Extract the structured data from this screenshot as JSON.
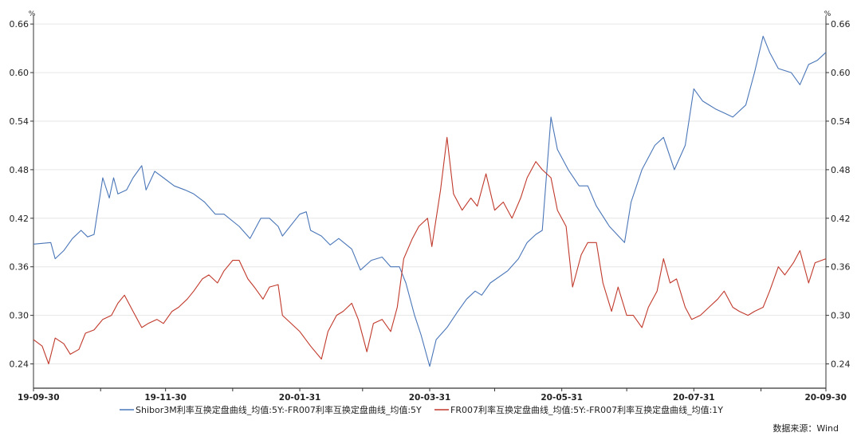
{
  "chart_data": {
    "type": "line",
    "unit_left": "%",
    "unit_right": "%",
    "ylim": [
      0.21,
      0.67
    ],
    "yticks": [
      0.24,
      0.3,
      0.36,
      0.42,
      0.48,
      0.54,
      0.6,
      0.66
    ],
    "ytick_labels": [
      "0.24",
      "0.30",
      "0.36",
      "0.42",
      "0.48",
      "0.54",
      "0.60",
      "0.66"
    ],
    "xlim": [
      "2019-09-30",
      "2020-09-30"
    ],
    "xtick_labels": [
      "19-09-30",
      "19-11-30",
      "20-01-31",
      "20-03-31",
      "20-05-31",
      "20-07-31",
      "20-09-30"
    ],
    "xtick_dates": [
      "2019-09-30",
      "2019-11-30",
      "2020-01-31",
      "2020-03-31",
      "2020-05-31",
      "2020-07-31",
      "2020-09-30"
    ],
    "grid": "horizontal",
    "legend_position": "bottom",
    "series": [
      {
        "name": "Shibor3M利率互换定盘曲线_均值:5Y:-FR007利率互换定盘曲线_均值:5Y",
        "color": "#4a76b8",
        "points": [
          [
            "2019-09-30",
            0.388
          ],
          [
            "2019-10-08",
            0.39
          ],
          [
            "2019-10-10",
            0.37
          ],
          [
            "2019-10-14",
            0.38
          ],
          [
            "2019-10-18",
            0.395
          ],
          [
            "2019-10-22",
            0.405
          ],
          [
            "2019-10-25",
            0.397
          ],
          [
            "2019-10-28",
            0.4
          ],
          [
            "2019-11-01",
            0.47
          ],
          [
            "2019-11-04",
            0.445
          ],
          [
            "2019-11-06",
            0.47
          ],
          [
            "2019-11-08",
            0.45
          ],
          [
            "2019-11-12",
            0.455
          ],
          [
            "2019-11-15",
            0.47
          ],
          [
            "2019-11-19",
            0.485
          ],
          [
            "2019-11-21",
            0.455
          ],
          [
            "2019-11-25",
            0.478
          ],
          [
            "2019-11-29",
            0.47
          ],
          [
            "2019-12-04",
            0.46
          ],
          [
            "2019-12-09",
            0.455
          ],
          [
            "2019-12-13",
            0.45
          ],
          [
            "2019-12-18",
            0.44
          ],
          [
            "2019-12-23",
            0.425
          ],
          [
            "2019-12-27",
            0.425
          ],
          [
            "2020-01-03",
            0.41
          ],
          [
            "2020-01-08",
            0.395
          ],
          [
            "2020-01-13",
            0.42
          ],
          [
            "2020-01-17",
            0.42
          ],
          [
            "2020-01-21",
            0.41
          ],
          [
            "2020-01-23",
            0.398
          ],
          [
            "2020-01-31",
            0.425
          ],
          [
            "2020-02-03",
            0.428
          ],
          [
            "2020-02-05",
            0.405
          ],
          [
            "2020-02-10",
            0.398
          ],
          [
            "2020-02-14",
            0.387
          ],
          [
            "2020-02-18",
            0.395
          ],
          [
            "2020-02-24",
            0.382
          ],
          [
            "2020-02-28",
            0.356
          ],
          [
            "2020-03-04",
            0.368
          ],
          [
            "2020-03-09",
            0.372
          ],
          [
            "2020-03-13",
            0.36
          ],
          [
            "2020-03-17",
            0.36
          ],
          [
            "2020-03-20",
            0.34
          ],
          [
            "2020-03-24",
            0.3
          ],
          [
            "2020-03-27",
            0.276
          ],
          [
            "2020-03-31",
            0.237
          ],
          [
            "2020-04-03",
            0.27
          ],
          [
            "2020-04-08",
            0.285
          ],
          [
            "2020-04-13",
            0.305
          ],
          [
            "2020-04-17",
            0.32
          ],
          [
            "2020-04-21",
            0.33
          ],
          [
            "2020-04-24",
            0.325
          ],
          [
            "2020-04-28",
            0.34
          ],
          [
            "2020-05-06",
            0.355
          ],
          [
            "2020-05-11",
            0.37
          ],
          [
            "2020-05-15",
            0.39
          ],
          [
            "2020-05-19",
            0.4
          ],
          [
            "2020-05-22",
            0.405
          ],
          [
            "2020-05-26",
            0.545
          ],
          [
            "2020-05-29",
            0.505
          ],
          [
            "2020-06-03",
            0.48
          ],
          [
            "2020-06-08",
            0.46
          ],
          [
            "2020-06-12",
            0.46
          ],
          [
            "2020-06-16",
            0.435
          ],
          [
            "2020-06-22",
            0.41
          ],
          [
            "2020-06-29",
            0.39
          ],
          [
            "2020-07-02",
            0.44
          ],
          [
            "2020-07-07",
            0.48
          ],
          [
            "2020-07-13",
            0.51
          ],
          [
            "2020-07-17",
            0.52
          ],
          [
            "2020-07-22",
            0.48
          ],
          [
            "2020-07-27",
            0.51
          ],
          [
            "2020-07-31",
            0.58
          ],
          [
            "2020-08-04",
            0.565
          ],
          [
            "2020-08-10",
            0.555
          ],
          [
            "2020-08-14",
            0.55
          ],
          [
            "2020-08-18",
            0.545
          ],
          [
            "2020-08-24",
            0.56
          ],
          [
            "2020-08-28",
            0.6
          ],
          [
            "2020-09-01",
            0.645
          ],
          [
            "2020-09-04",
            0.625
          ],
          [
            "2020-09-08",
            0.605
          ],
          [
            "2020-09-14",
            0.6
          ],
          [
            "2020-09-18",
            0.585
          ],
          [
            "2020-09-22",
            0.61
          ],
          [
            "2020-09-26",
            0.615
          ],
          [
            "2020-09-30",
            0.625
          ]
        ]
      },
      {
        "name": "FR007利率互换定盘曲线_均值:5Y:-FR007利率互换定盘曲线_均值:1Y",
        "color": "#c0392b",
        "points": [
          [
            "2019-09-30",
            0.27
          ],
          [
            "2019-10-04",
            0.262
          ],
          [
            "2019-10-07",
            0.24
          ],
          [
            "2019-10-10",
            0.272
          ],
          [
            "2019-10-14",
            0.265
          ],
          [
            "2019-10-17",
            0.252
          ],
          [
            "2019-10-21",
            0.258
          ],
          [
            "2019-10-24",
            0.278
          ],
          [
            "2019-10-28",
            0.282
          ],
          [
            "2019-11-01",
            0.295
          ],
          [
            "2019-11-05",
            0.3
          ],
          [
            "2019-11-08",
            0.315
          ],
          [
            "2019-11-11",
            0.325
          ],
          [
            "2019-11-15",
            0.305
          ],
          [
            "2019-11-19",
            0.285
          ],
          [
            "2019-11-22",
            0.29
          ],
          [
            "2019-11-26",
            0.295
          ],
          [
            "2019-11-29",
            0.29
          ],
          [
            "2019-12-03",
            0.305
          ],
          [
            "2019-12-06",
            0.31
          ],
          [
            "2019-12-10",
            0.32
          ],
          [
            "2019-12-13",
            0.33
          ],
          [
            "2019-12-17",
            0.345
          ],
          [
            "2019-12-20",
            0.35
          ],
          [
            "2019-12-24",
            0.34
          ],
          [
            "2019-12-27",
            0.355
          ],
          [
            "2019-12-31",
            0.368
          ],
          [
            "2020-01-03",
            0.368
          ],
          [
            "2020-01-07",
            0.345
          ],
          [
            "2020-01-10",
            0.335
          ],
          [
            "2020-01-14",
            0.32
          ],
          [
            "2020-01-17",
            0.335
          ],
          [
            "2020-01-21",
            0.338
          ],
          [
            "2020-01-23",
            0.3
          ],
          [
            "2020-01-31",
            0.28
          ],
          [
            "2020-02-05",
            0.262
          ],
          [
            "2020-02-10",
            0.246
          ],
          [
            "2020-02-13",
            0.28
          ],
          [
            "2020-02-17",
            0.3
          ],
          [
            "2020-02-20",
            0.305
          ],
          [
            "2020-02-24",
            0.315
          ],
          [
            "2020-02-27",
            0.295
          ],
          [
            "2020-03-02",
            0.255
          ],
          [
            "2020-03-05",
            0.29
          ],
          [
            "2020-03-09",
            0.295
          ],
          [
            "2020-03-13",
            0.28
          ],
          [
            "2020-03-16",
            0.31
          ],
          [
            "2020-03-19",
            0.37
          ],
          [
            "2020-03-23",
            0.395
          ],
          [
            "2020-03-26",
            0.41
          ],
          [
            "2020-03-30",
            0.42
          ],
          [
            "2020-04-01",
            0.385
          ],
          [
            "2020-04-05",
            0.455
          ],
          [
            "2020-04-08",
            0.52
          ],
          [
            "2020-04-11",
            0.45
          ],
          [
            "2020-04-15",
            0.43
          ],
          [
            "2020-04-19",
            0.445
          ],
          [
            "2020-04-22",
            0.435
          ],
          [
            "2020-04-26",
            0.475
          ],
          [
            "2020-04-30",
            0.43
          ],
          [
            "2020-05-04",
            0.44
          ],
          [
            "2020-05-08",
            0.42
          ],
          [
            "2020-05-12",
            0.445
          ],
          [
            "2020-05-15",
            0.47
          ],
          [
            "2020-05-19",
            0.49
          ],
          [
            "2020-05-22",
            0.48
          ],
          [
            "2020-05-26",
            0.47
          ],
          [
            "2020-05-29",
            0.43
          ],
          [
            "2020-06-02",
            0.41
          ],
          [
            "2020-06-05",
            0.335
          ],
          [
            "2020-06-09",
            0.375
          ],
          [
            "2020-06-12",
            0.39
          ],
          [
            "2020-06-16",
            0.39
          ],
          [
            "2020-06-19",
            0.34
          ],
          [
            "2020-06-23",
            0.305
          ],
          [
            "2020-06-26",
            0.335
          ],
          [
            "2020-06-30",
            0.3
          ],
          [
            "2020-07-03",
            0.3
          ],
          [
            "2020-07-07",
            0.285
          ],
          [
            "2020-07-10",
            0.31
          ],
          [
            "2020-07-14",
            0.33
          ],
          [
            "2020-07-17",
            0.37
          ],
          [
            "2020-07-20",
            0.34
          ],
          [
            "2020-07-23",
            0.345
          ],
          [
            "2020-07-27",
            0.31
          ],
          [
            "2020-07-30",
            0.295
          ],
          [
            "2020-08-03",
            0.3
          ],
          [
            "2020-08-07",
            0.31
          ],
          [
            "2020-08-11",
            0.32
          ],
          [
            "2020-08-14",
            0.33
          ],
          [
            "2020-08-18",
            0.31
          ],
          [
            "2020-08-21",
            0.305
          ],
          [
            "2020-08-25",
            0.3
          ],
          [
            "2020-08-28",
            0.305
          ],
          [
            "2020-09-01",
            0.31
          ],
          [
            "2020-09-04",
            0.33
          ],
          [
            "2020-09-08",
            0.36
          ],
          [
            "2020-09-11",
            0.35
          ],
          [
            "2020-09-15",
            0.365
          ],
          [
            "2020-09-18",
            0.38
          ],
          [
            "2020-09-22",
            0.34
          ],
          [
            "2020-09-25",
            0.365
          ],
          [
            "2020-09-30",
            0.37
          ]
        ]
      }
    ]
  },
  "source_text": "数据来源：Wind"
}
